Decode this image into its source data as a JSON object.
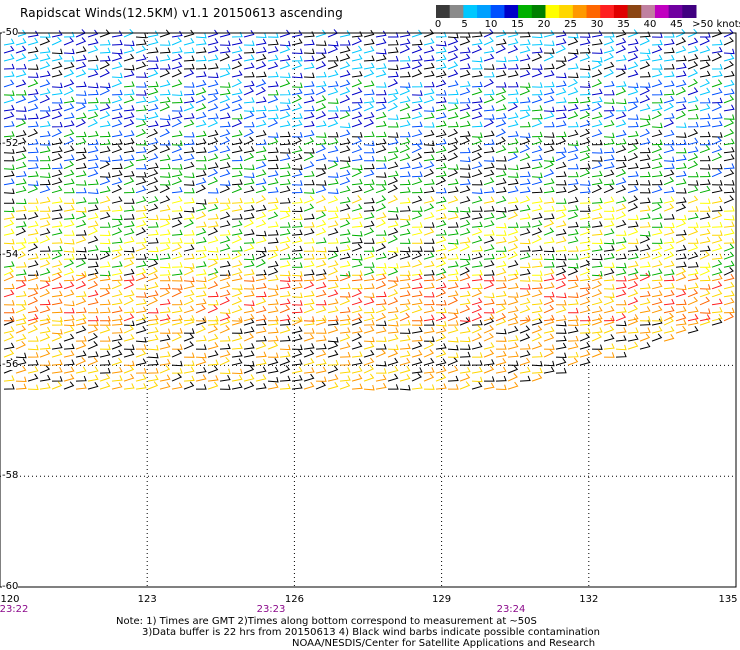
{
  "title": "Rapidscat Winds(12.5KM) v1.1 20150613 ascending",
  "colorbar": {
    "labels": [
      "0",
      "5",
      "10",
      "15",
      "20",
      "25",
      "30",
      "35",
      "40",
      "45",
      ">50 knots"
    ],
    "colors": [
      "#3a3a3a",
      "#8a8a8a",
      "#00c8ff",
      "#00a0ff",
      "#0050ff",
      "#0000c8",
      "#00b000",
      "#008000",
      "#ffff00",
      "#ffd700",
      "#ff9900",
      "#ff6600",
      "#ff2020",
      "#e00000",
      "#8b4513",
      "#c080a0",
      "#c000c0",
      "#7000a0",
      "#400080"
    ]
  },
  "axes": {
    "lon_ticks": [
      "120",
      "123",
      "126",
      "129",
      "132",
      "135"
    ],
    "lat_ticks": [
      "-50",
      "-52",
      "-54",
      "-56",
      "-58",
      "-60"
    ],
    "lon_range": [
      120,
      135
    ],
    "lat_range": [
      -60,
      -50
    ]
  },
  "times": [
    "23:22",
    "23:23",
    "23:24"
  ],
  "notes": [
    "Note: 1) Times are GMT 2)Times along bottom correspond to measurement at ~50S",
    "3)Data buffer is 22 hrs from 20150613 4) Black wind barbs indicate possible contamination",
    "NOAA/NESDIS/Center for Satellite Applications and Research"
  ],
  "wind_bands": [
    {
      "lat_start": -50.0,
      "lat_end": -50.9,
      "colors": [
        "#00c8ff",
        "#0000c8",
        "#000000"
      ]
    },
    {
      "lat_start": -50.9,
      "lat_end": -51.8,
      "colors": [
        "#0050ff",
        "#0000c8",
        "#00b000",
        "#00c8ff"
      ]
    },
    {
      "lat_start": -51.8,
      "lat_end": -53.0,
      "colors": [
        "#000000",
        "#00b000",
        "#0050ff"
      ]
    },
    {
      "lat_start": -53.0,
      "lat_end": -54.4,
      "colors": [
        "#ffff00",
        "#ffd700",
        "#000000",
        "#00b000"
      ]
    },
    {
      "lat_start": -54.4,
      "lat_end": -55.2,
      "colors": [
        "#ff9900",
        "#ff6600",
        "#ffd700",
        "#ff2020"
      ]
    },
    {
      "lat_start": -55.2,
      "lat_end": -56.5,
      "colors": [
        "#000000",
        "#ffd700",
        "#ff9900"
      ]
    }
  ]
}
